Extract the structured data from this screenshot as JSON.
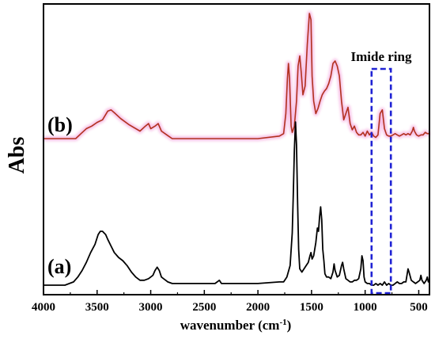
{
  "chart_data": {
    "type": "line",
    "xlabel": "wavenumber (cm",
    "xlabel_sup": "-1",
    "xlabel_end": ")",
    "ylabel": "Abs",
    "x_reversed": true,
    "xlim": [
      4000,
      400
    ],
    "xticks": [
      4000,
      3500,
      3000,
      2500,
      2000,
      1500,
      1000,
      500
    ],
    "annotation": {
      "label": "Imide ring",
      "x_range": [
        940,
        760
      ],
      "color": "#1f22d4"
    },
    "series": [
      {
        "name": "(b)",
        "color": "#b2311f",
        "glow": "#f6b6e2",
        "points": [
          [
            4000,
            0.0
          ],
          [
            3800,
            0.0
          ],
          [
            3700,
            0.0
          ],
          [
            3650,
            0.04
          ],
          [
            3600,
            0.08
          ],
          [
            3550,
            0.1
          ],
          [
            3500,
            0.13
          ],
          [
            3450,
            0.15
          ],
          [
            3400,
            0.22
          ],
          [
            3370,
            0.23
          ],
          [
            3330,
            0.2
          ],
          [
            3280,
            0.16
          ],
          [
            3200,
            0.11
          ],
          [
            3100,
            0.06
          ],
          [
            3050,
            0.1
          ],
          [
            3020,
            0.12
          ],
          [
            3000,
            0.08
          ],
          [
            2960,
            0.1
          ],
          [
            2930,
            0.12
          ],
          [
            2900,
            0.06
          ],
          [
            2850,
            0.03
          ],
          [
            2800,
            0.0
          ],
          [
            2500,
            0.0
          ],
          [
            2000,
            0.0
          ],
          [
            1800,
            0.02
          ],
          [
            1760,
            0.04
          ],
          [
            1740,
            0.2
          ],
          [
            1725,
            0.48
          ],
          [
            1715,
            0.6
          ],
          [
            1705,
            0.48
          ],
          [
            1690,
            0.1
          ],
          [
            1680,
            0.05
          ],
          [
            1660,
            0.1
          ],
          [
            1640,
            0.3
          ],
          [
            1625,
            0.58
          ],
          [
            1610,
            0.66
          ],
          [
            1595,
            0.52
          ],
          [
            1580,
            0.35
          ],
          [
            1560,
            0.42
          ],
          [
            1540,
            0.75
          ],
          [
            1520,
            1.0
          ],
          [
            1505,
            0.95
          ],
          [
            1495,
            0.5
          ],
          [
            1480,
            0.3
          ],
          [
            1460,
            0.2
          ],
          [
            1440,
            0.24
          ],
          [
            1420,
            0.3
          ],
          [
            1400,
            0.35
          ],
          [
            1380,
            0.38
          ],
          [
            1360,
            0.4
          ],
          [
            1340,
            0.44
          ],
          [
            1320,
            0.5
          ],
          [
            1300,
            0.6
          ],
          [
            1280,
            0.62
          ],
          [
            1260,
            0.58
          ],
          [
            1240,
            0.5
          ],
          [
            1220,
            0.3
          ],
          [
            1200,
            0.15
          ],
          [
            1180,
            0.2
          ],
          [
            1160,
            0.25
          ],
          [
            1140,
            0.12
          ],
          [
            1120,
            0.07
          ],
          [
            1100,
            0.1
          ],
          [
            1080,
            0.05
          ],
          [
            1060,
            0.03
          ],
          [
            1040,
            0.03
          ],
          [
            1020,
            0.05
          ],
          [
            1000,
            0.02
          ],
          [
            980,
            0.06
          ],
          [
            960,
            0.03
          ],
          [
            940,
            0.05
          ],
          [
            920,
            0.02
          ],
          [
            900,
            0.01
          ],
          [
            880,
            0.03
          ],
          [
            860,
            0.2
          ],
          [
            840,
            0.23
          ],
          [
            820,
            0.08
          ],
          [
            800,
            0.03
          ],
          [
            780,
            0.02
          ],
          [
            760,
            0.02
          ],
          [
            740,
            0.03
          ],
          [
            720,
            0.04
          ],
          [
            700,
            0.03
          ],
          [
            680,
            0.02
          ],
          [
            660,
            0.03
          ],
          [
            640,
            0.04
          ],
          [
            620,
            0.03
          ],
          [
            600,
            0.04
          ],
          [
            580,
            0.03
          ],
          [
            560,
            0.06
          ],
          [
            550,
            0.09
          ],
          [
            540,
            0.06
          ],
          [
            520,
            0.03
          ],
          [
            500,
            0.02
          ],
          [
            480,
            0.03
          ],
          [
            460,
            0.03
          ],
          [
            440,
            0.05
          ],
          [
            420,
            0.04
          ],
          [
            400,
            0.04
          ]
        ]
      },
      {
        "name": "(a)",
        "color": "#000000",
        "points": [
          [
            4000,
            0.0
          ],
          [
            3900,
            0.0
          ],
          [
            3800,
            0.0
          ],
          [
            3720,
            0.02
          ],
          [
            3680,
            0.05
          ],
          [
            3640,
            0.09
          ],
          [
            3600,
            0.14
          ],
          [
            3560,
            0.2
          ],
          [
            3520,
            0.25
          ],
          [
            3490,
            0.31
          ],
          [
            3470,
            0.33
          ],
          [
            3450,
            0.33
          ],
          [
            3420,
            0.31
          ],
          [
            3400,
            0.28
          ],
          [
            3370,
            0.24
          ],
          [
            3340,
            0.2
          ],
          [
            3300,
            0.17
          ],
          [
            3260,
            0.15
          ],
          [
            3220,
            0.12
          ],
          [
            3180,
            0.08
          ],
          [
            3140,
            0.05
          ],
          [
            3100,
            0.03
          ],
          [
            3060,
            0.03
          ],
          [
            3020,
            0.04
          ],
          [
            3000,
            0.05
          ],
          [
            2980,
            0.06
          ],
          [
            2960,
            0.09
          ],
          [
            2940,
            0.11
          ],
          [
            2920,
            0.09
          ],
          [
            2900,
            0.05
          ],
          [
            2880,
            0.04
          ],
          [
            2860,
            0.03
          ],
          [
            2840,
            0.02
          ],
          [
            2800,
            0.01
          ],
          [
            2600,
            0.01
          ],
          [
            2400,
            0.01
          ],
          [
            2380,
            0.02
          ],
          [
            2360,
            0.03
          ],
          [
            2340,
            0.01
          ],
          [
            2200,
            0.01
          ],
          [
            2100,
            0.01
          ],
          [
            2000,
            0.01
          ],
          [
            1800,
            0.02
          ],
          [
            1760,
            0.02
          ],
          [
            1730,
            0.05
          ],
          [
            1700,
            0.12
          ],
          [
            1680,
            0.32
          ],
          [
            1670,
            0.55
          ],
          [
            1660,
            0.83
          ],
          [
            1650,
            1.0
          ],
          [
            1640,
            0.86
          ],
          [
            1630,
            0.5
          ],
          [
            1620,
            0.22
          ],
          [
            1610,
            0.1
          ],
          [
            1590,
            0.08
          ],
          [
            1570,
            0.1
          ],
          [
            1550,
            0.12
          ],
          [
            1530,
            0.14
          ],
          [
            1515,
            0.18
          ],
          [
            1505,
            0.2
          ],
          [
            1495,
            0.16
          ],
          [
            1480,
            0.18
          ],
          [
            1460,
            0.26
          ],
          [
            1445,
            0.35
          ],
          [
            1435,
            0.33
          ],
          [
            1425,
            0.42
          ],
          [
            1415,
            0.48
          ],
          [
            1405,
            0.4
          ],
          [
            1395,
            0.22
          ],
          [
            1385,
            0.15
          ],
          [
            1375,
            0.07
          ],
          [
            1360,
            0.05
          ],
          [
            1340,
            0.05
          ],
          [
            1320,
            0.04
          ],
          [
            1300,
            0.08
          ],
          [
            1290,
            0.13
          ],
          [
            1280,
            0.09
          ],
          [
            1260,
            0.05
          ],
          [
            1240,
            0.06
          ],
          [
            1220,
            0.12
          ],
          [
            1210,
            0.14
          ],
          [
            1200,
            0.1
          ],
          [
            1180,
            0.04
          ],
          [
            1160,
            0.03
          ],
          [
            1140,
            0.02
          ],
          [
            1120,
            0.02
          ],
          [
            1100,
            0.03
          ],
          [
            1080,
            0.03
          ],
          [
            1060,
            0.04
          ],
          [
            1040,
            0.1
          ],
          [
            1030,
            0.18
          ],
          [
            1020,
            0.15
          ],
          [
            1010,
            0.05
          ],
          [
            1000,
            0.02
          ],
          [
            980,
            0.01
          ],
          [
            960,
            0.01
          ],
          [
            940,
            0.0
          ],
          [
            920,
            0.0
          ],
          [
            900,
            0.01
          ],
          [
            880,
            0.0
          ],
          [
            860,
            0.01
          ],
          [
            840,
            0.0
          ],
          [
            820,
            0.02
          ],
          [
            800,
            0.0
          ],
          [
            780,
            0.01
          ],
          [
            760,
            0.0
          ],
          [
            740,
            0.0
          ],
          [
            720,
            0.01
          ],
          [
            700,
            0.02
          ],
          [
            680,
            0.01
          ],
          [
            660,
            0.01
          ],
          [
            640,
            0.02
          ],
          [
            620,
            0.02
          ],
          [
            600,
            0.1
          ],
          [
            590,
            0.08
          ],
          [
            570,
            0.03
          ],
          [
            550,
            0.02
          ],
          [
            530,
            0.01
          ],
          [
            510,
            0.02
          ],
          [
            490,
            0.03
          ],
          [
            480,
            0.06
          ],
          [
            470,
            0.03
          ],
          [
            450,
            0.01
          ],
          [
            430,
            0.03
          ],
          [
            420,
            0.05
          ],
          [
            410,
            0.02
          ],
          [
            400,
            0.02
          ]
        ]
      }
    ]
  }
}
